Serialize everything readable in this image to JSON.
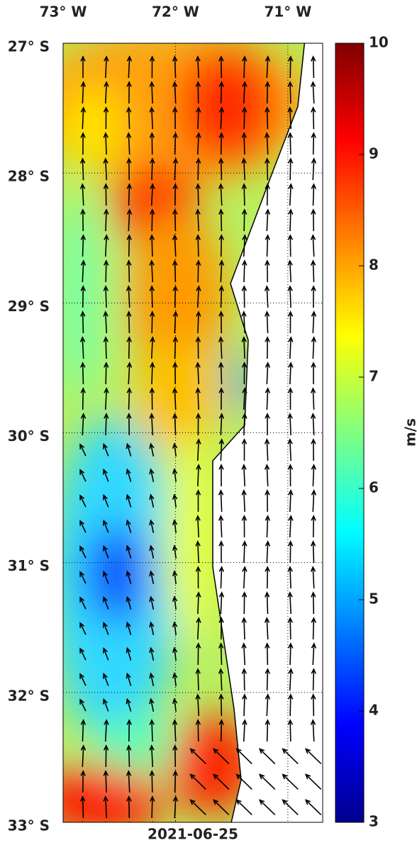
{
  "map": {
    "date": "2021-06-25",
    "xlim": [
      -73,
      -70.69
    ],
    "ylim": [
      -33,
      -27
    ],
    "lon_ticks": [
      {
        "value": -73,
        "label": "73° W"
      },
      {
        "value": -72,
        "label": "72° W"
      },
      {
        "value": -71,
        "label": "71° W"
      }
    ],
    "lat_ticks": [
      {
        "value": -27,
        "label": "27° S"
      },
      {
        "value": -28,
        "label": "28° S"
      },
      {
        "value": -29,
        "label": "29° S"
      },
      {
        "value": -30,
        "label": "30° S"
      },
      {
        "value": -31,
        "label": "31° S"
      },
      {
        "value": -32,
        "label": "32° S"
      },
      {
        "value": -33,
        "label": "33° S"
      }
    ],
    "colorbar": {
      "label": "m/s",
      "lim": [
        3,
        10
      ],
      "ticks": [
        3,
        4,
        5,
        6,
        7,
        8,
        9,
        10
      ]
    }
  }
}
